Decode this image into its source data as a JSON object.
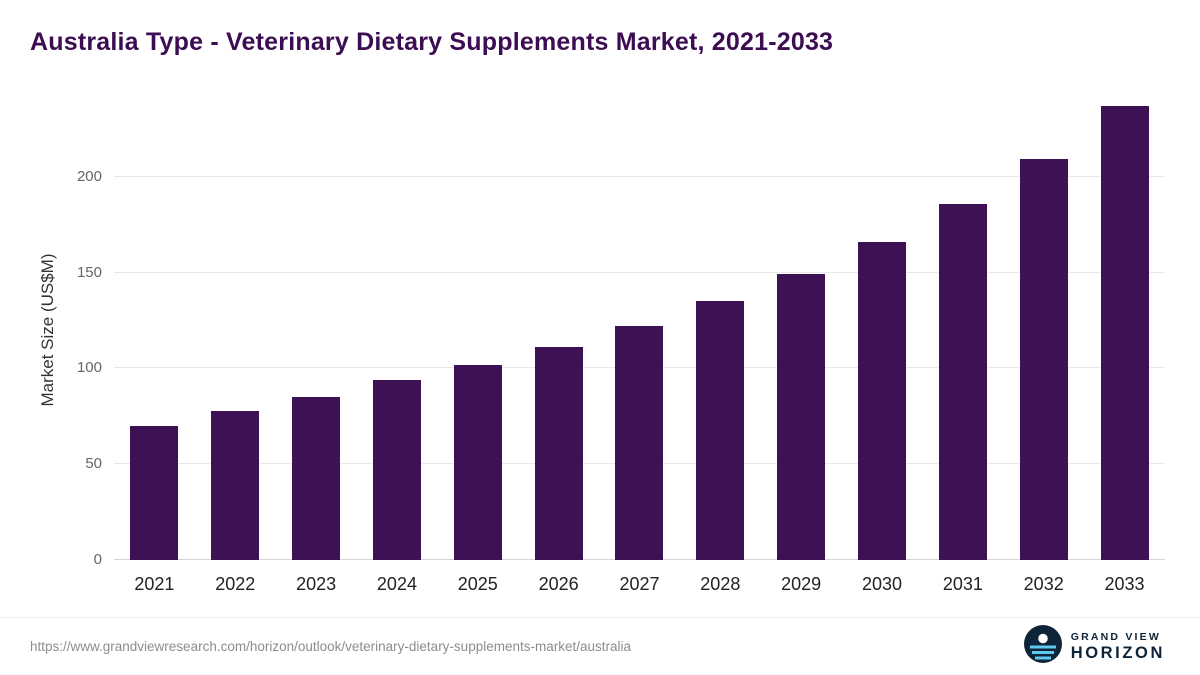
{
  "page": {
    "title": "Australia Type - Veterinary Dietary Supplements Market, 2021-2033",
    "footer_url": "https://www.grandviewresearch.com/horizon/outlook/veterinary-dietary-supplements-market/australia",
    "logo": {
      "line1": "GRAND VIEW",
      "line2": "HORIZON",
      "icon": "horizon-sun-icon",
      "icon_bg_color": "#0e2439",
      "icon_stripe_color": "#5ec8f0"
    }
  },
  "chart_data": {
    "type": "bar",
    "title": "Australia Type - Veterinary Dietary Supplements Market, 2021-2033",
    "categories": [
      "2021",
      "2022",
      "2023",
      "2024",
      "2025",
      "2026",
      "2027",
      "2028",
      "2029",
      "2030",
      "2031",
      "2032",
      "2033"
    ],
    "values": [
      70,
      78,
      85,
      94,
      102,
      111,
      122,
      135,
      149,
      166,
      186,
      209,
      237
    ],
    "xlabel": "",
    "ylabel": "Market Size (US$M)",
    "ylim": [
      0,
      240
    ],
    "yticks": [
      0,
      50,
      100,
      150,
      200
    ],
    "grid": "horizontal",
    "legend": "none",
    "bar_color": "#3e1154",
    "title_color": "#3c0d52"
  }
}
